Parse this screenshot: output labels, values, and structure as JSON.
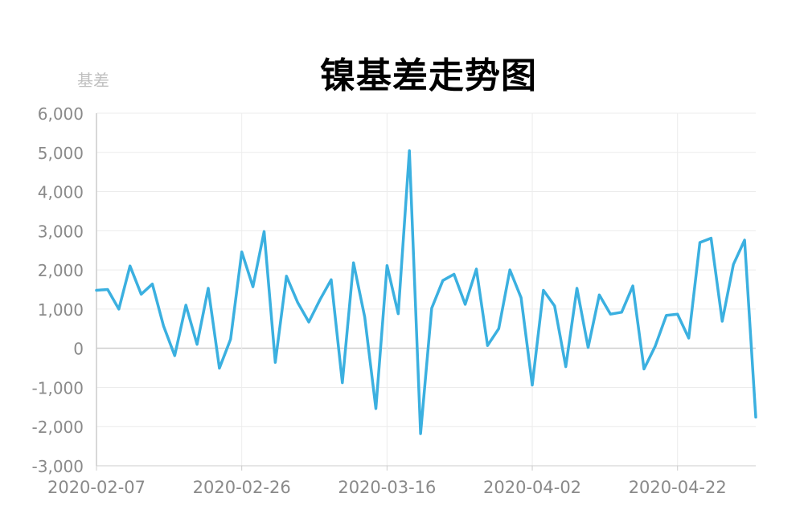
{
  "chart_data": {
    "type": "line",
    "title": "镍基差走势图",
    "ylabel": "基差",
    "xlabel": "",
    "ylim": [
      -3000,
      6000
    ],
    "yticks": [
      "6,000",
      "5,000",
      "4,000",
      "3,000",
      "2,000",
      "1,000",
      "0",
      "-1,000",
      "-2,000",
      "-3,000"
    ],
    "ytick_values": [
      6000,
      5000,
      4000,
      3000,
      2000,
      1000,
      0,
      -1000,
      -2000,
      -3000
    ],
    "xtick_labels": [
      "2020-02-07",
      "2020-02-26",
      "2020-03-16",
      "2020-04-02",
      "2020-04-22"
    ],
    "grid": true,
    "series_color": "#3bb0e0",
    "series": [
      {
        "values": [
          1480,
          1500,
          1000,
          2100,
          1380,
          1640,
          570,
          -190,
          1100,
          100,
          1530,
          -510,
          230,
          2460,
          1570,
          2980,
          -360,
          1840,
          1170,
          670,
          1240,
          1750,
          -880,
          2180,
          800,
          -1540,
          2110,
          880,
          5040,
          -2180,
          1020,
          1730,
          1890,
          1120,
          2020,
          70,
          500,
          2000,
          1290,
          -940,
          1480,
          1080,
          -470,
          1530,
          20,
          1360,
          870,
          920,
          1590,
          -530,
          50,
          840,
          870,
          260,
          2700,
          2810,
          690,
          2140,
          2760,
          -1760
        ]
      }
    ]
  }
}
